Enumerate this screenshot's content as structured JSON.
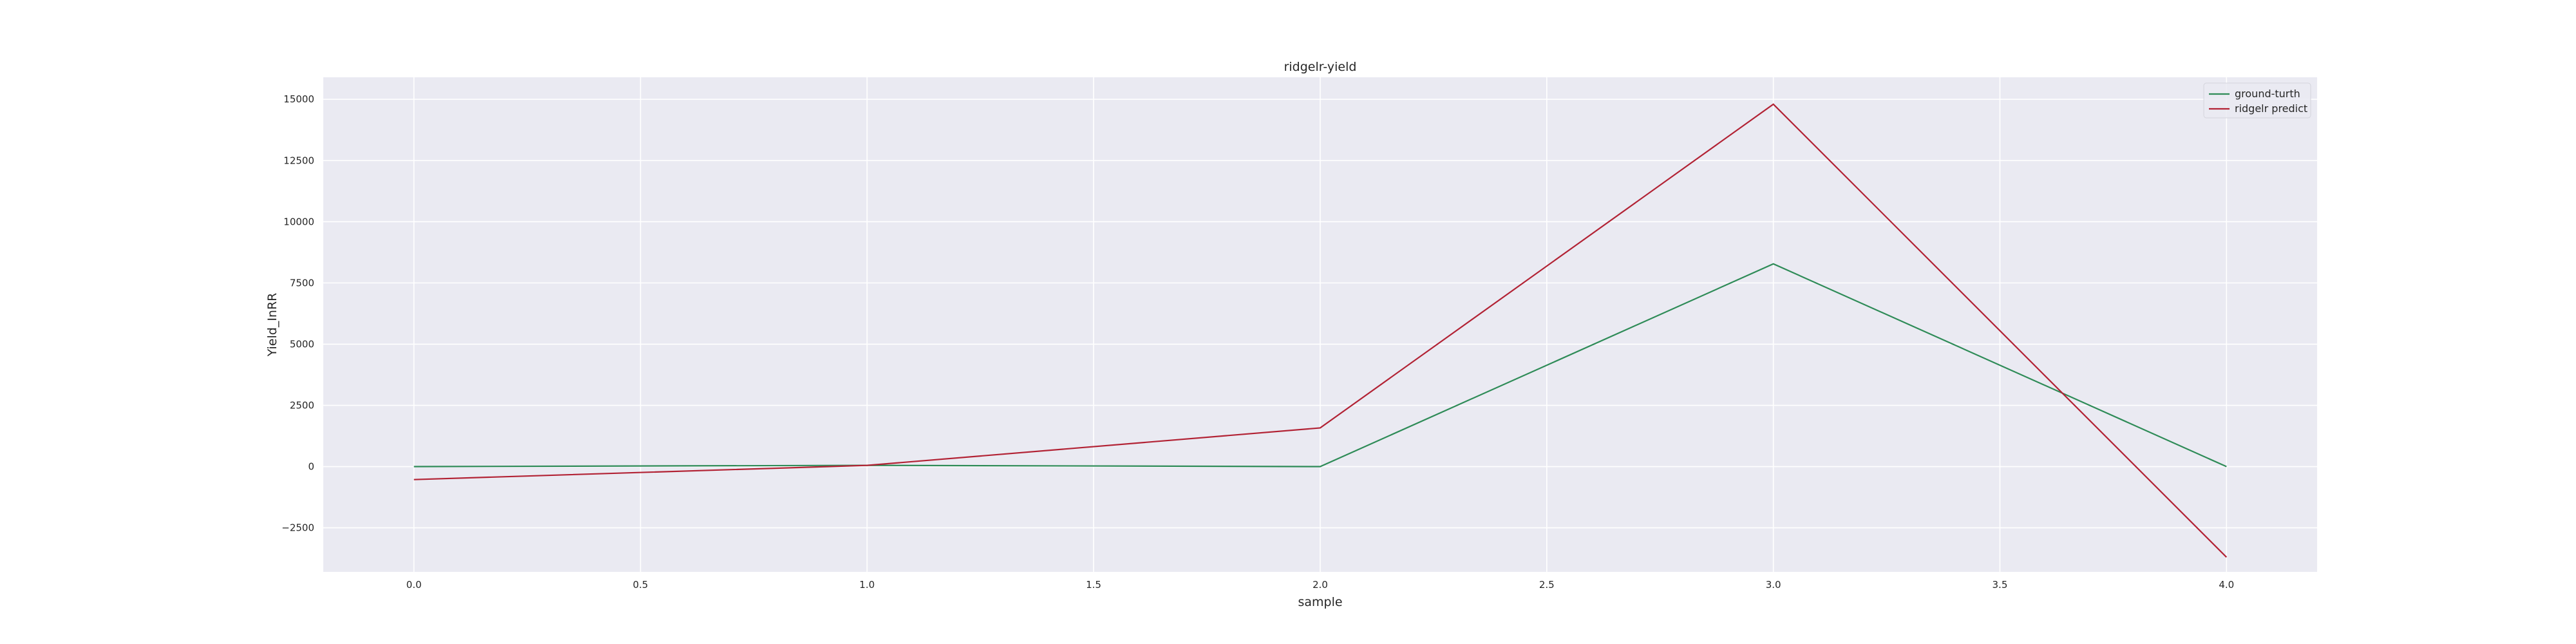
{
  "chart_data": {
    "type": "line",
    "title": "ridgelr-yield",
    "xlabel": "sample",
    "ylabel": "Yield_InRR",
    "xlim": [
      -0.2,
      4.2
    ],
    "ylim": [
      -4300,
      15900
    ],
    "xticks": [
      0.0,
      0.5,
      1.0,
      1.5,
      2.0,
      2.5,
      3.0,
      3.5,
      4.0
    ],
    "xtick_labels": [
      "0.0",
      "0.5",
      "1.0",
      "1.5",
      "2.0",
      "2.5",
      "3.0",
      "3.5",
      "4.0"
    ],
    "yticks": [
      -2500,
      0,
      2500,
      5000,
      7500,
      10000,
      12500,
      15000
    ],
    "ytick_labels": [
      "−2500",
      "0",
      "2500",
      "5000",
      "7500",
      "10000",
      "12500",
      "15000"
    ],
    "grid": true,
    "legend_position": "top-right",
    "background_color": "#eaeaf2",
    "grid_color": "#ffffff",
    "x": [
      0,
      1,
      2,
      3,
      4
    ],
    "series": [
      {
        "name": "ground-turth",
        "color": "#2e8b57",
        "values": [
          0,
          50,
          0,
          8280,
          0
        ]
      },
      {
        "name": "ridgelr predict",
        "color": "#b22234",
        "values": [
          -530,
          50,
          1580,
          14800,
          -3700
        ]
      }
    ]
  }
}
